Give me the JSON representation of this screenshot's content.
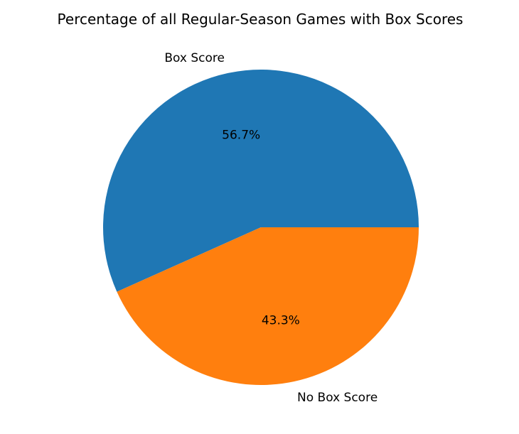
{
  "chart_data": {
    "type": "pie",
    "title": "Percentage of all Regular-Season Games with Box Scores",
    "categories": [
      "Box Score",
      "No Box Score"
    ],
    "values": [
      56.7,
      43.3
    ],
    "value_labels": [
      "56.7%",
      "43.3%"
    ],
    "colors": [
      "#1f77b4",
      "#ff7f0e"
    ],
    "start_angle_deg": 0,
    "direction": "counterclockwise"
  }
}
